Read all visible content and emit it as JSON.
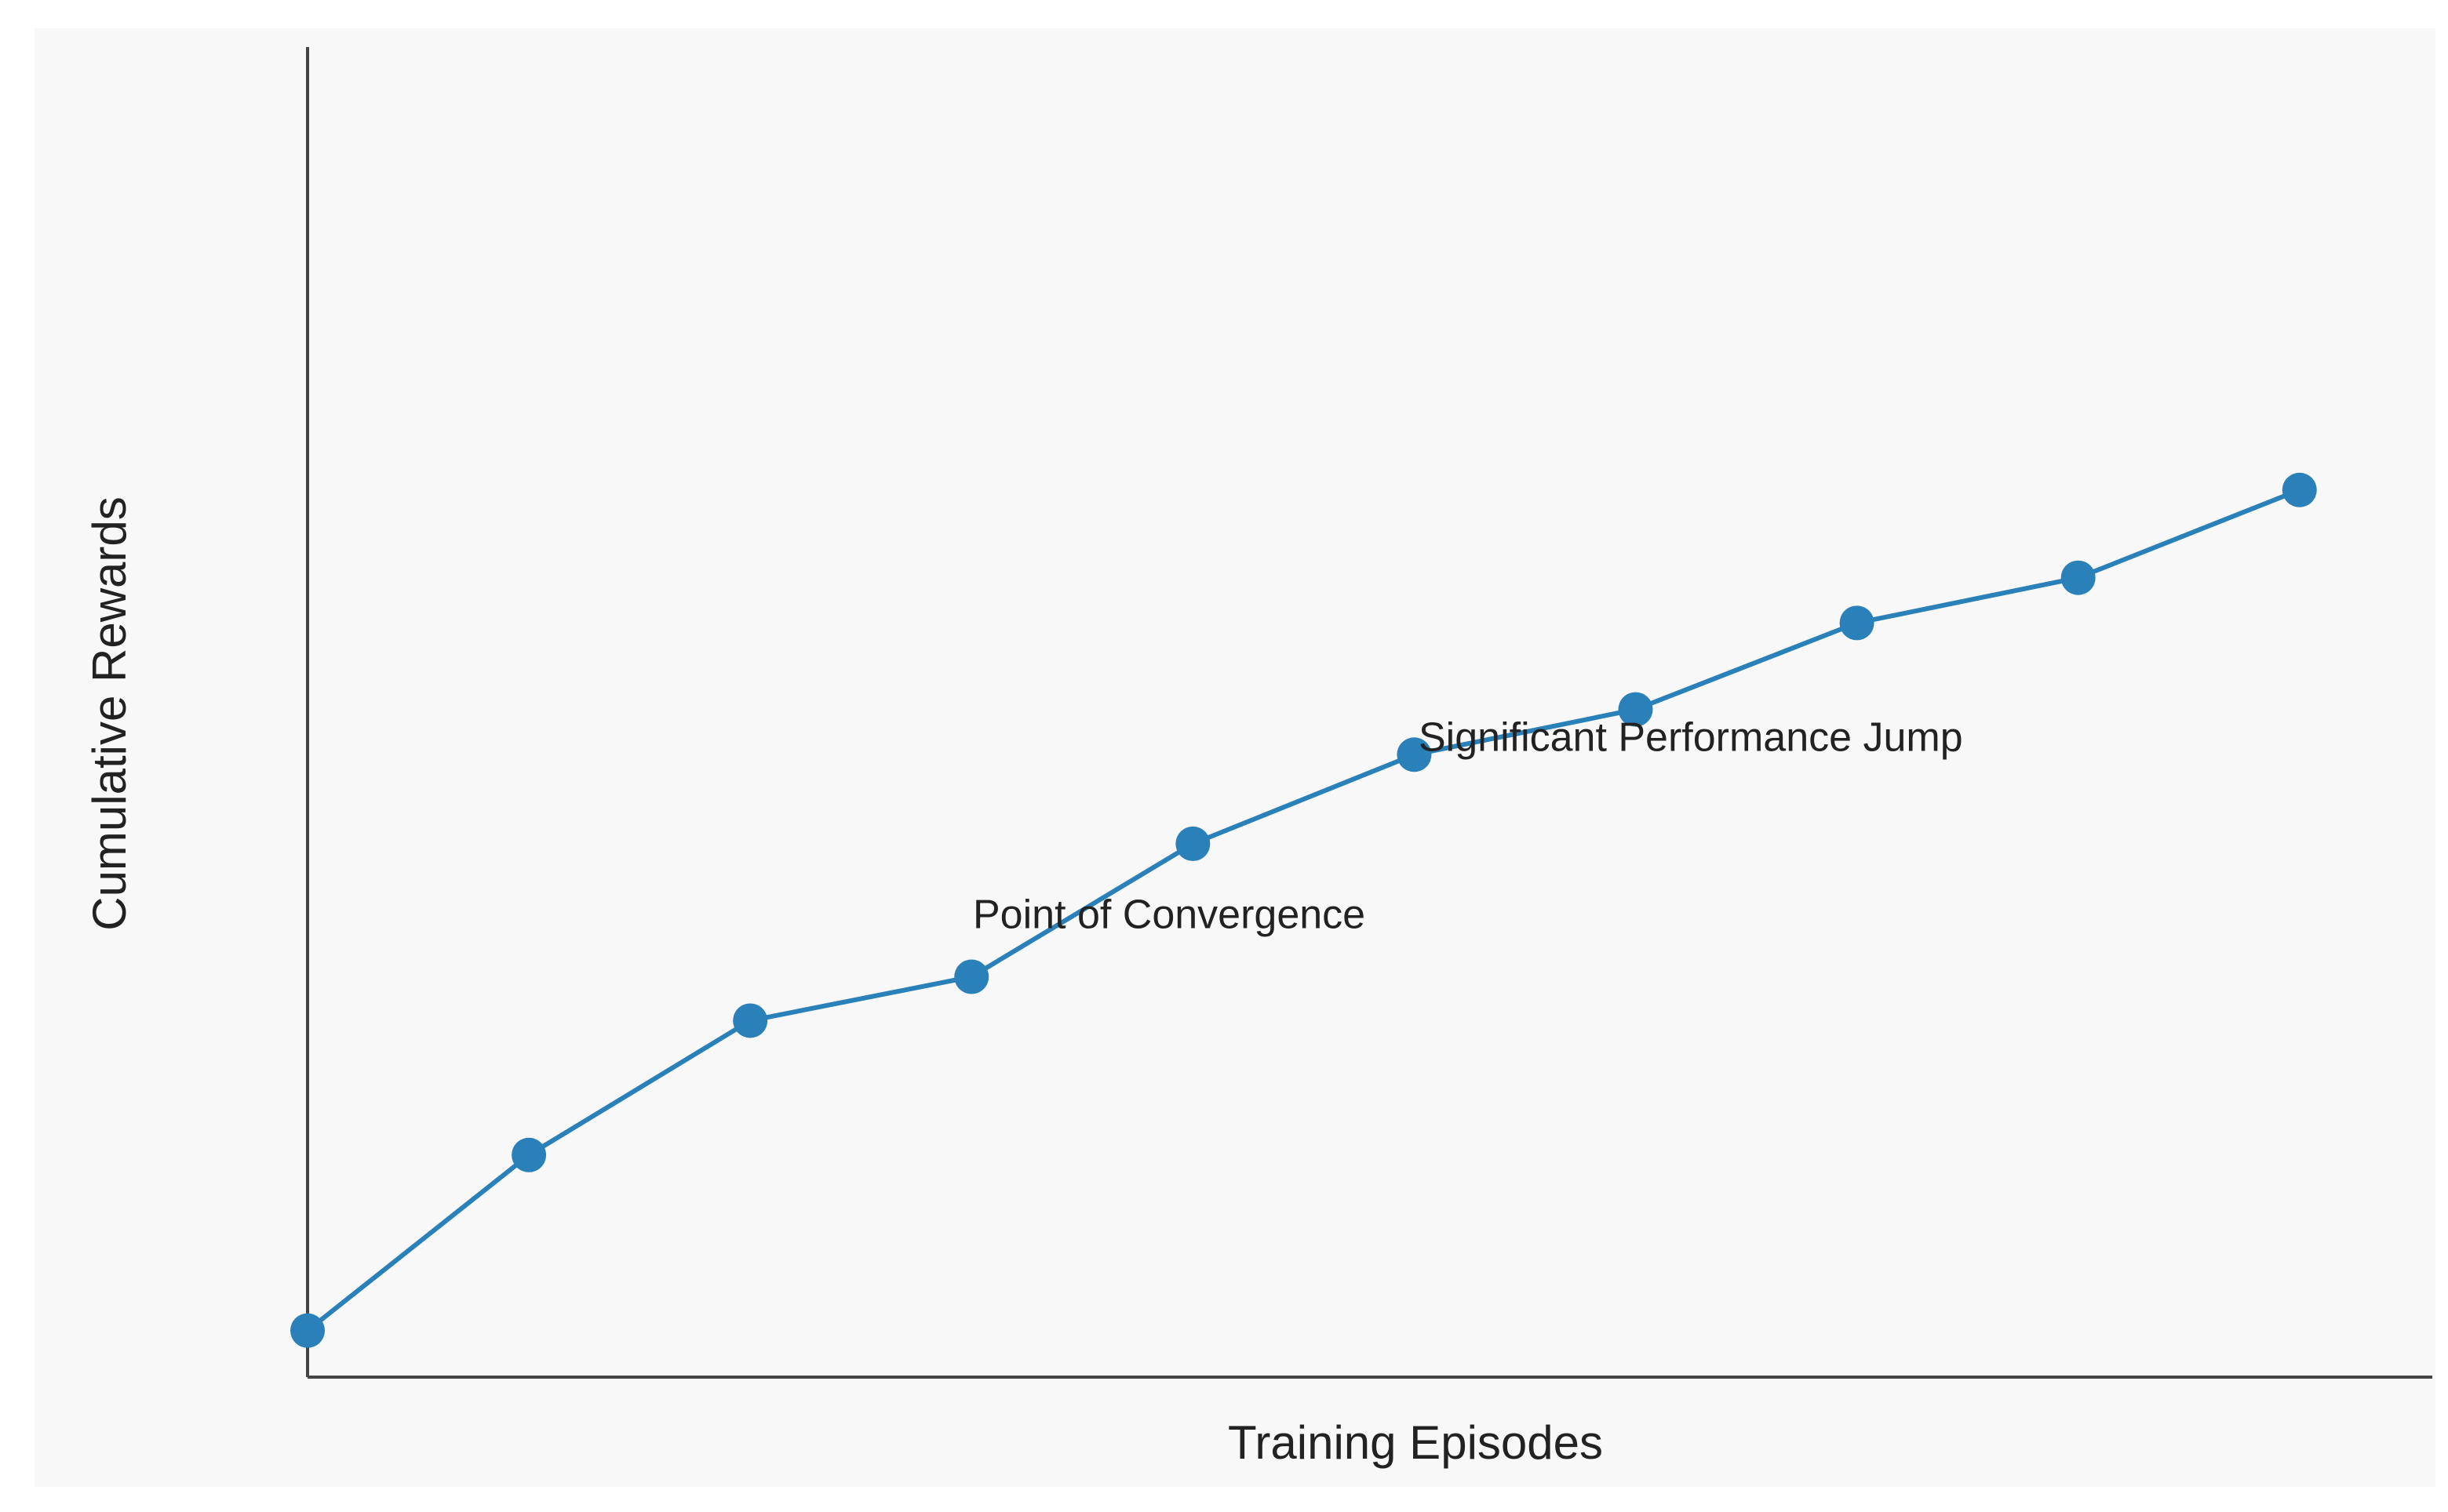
{
  "chart_data": {
    "type": "line",
    "x_label": "Training Episodes",
    "y_label": "Cumulative Rewards",
    "x": [
      0,
      1,
      2,
      3,
      4,
      5,
      6,
      7,
      8,
      9
    ],
    "series": [
      {
        "color": "#2a80b9",
        "values": [
          3.5,
          16.7,
          26.8,
          30.1,
          40.1,
          46.8,
          50.2,
          56.7,
          60.1,
          66.7
        ]
      }
    ],
    "xlim": [
      0,
      9.6
    ],
    "ylim": [
      0,
      100
    ],
    "annotations": [
      "Point of Convergence",
      "Significant Performance Jump"
    ]
  }
}
